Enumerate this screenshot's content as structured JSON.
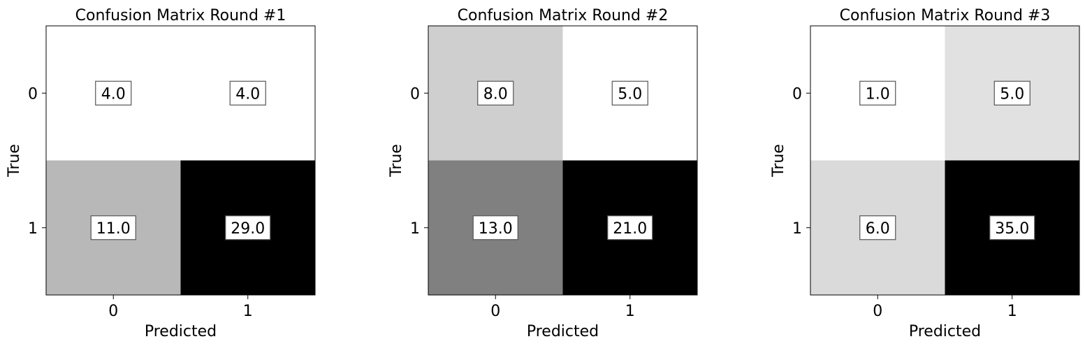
{
  "chart_data": [
    {
      "type": "heatmap",
      "title": "Confusion Matrix Round #1",
      "xlabel": "Predicted",
      "ylabel": "True",
      "x_ticks": [
        "0",
        "1"
      ],
      "y_ticks": [
        "0",
        "1"
      ],
      "values": [
        [
          4,
          4
        ],
        [
          11,
          29
        ]
      ],
      "value_labels": [
        [
          "4.0",
          "4.0"
        ],
        [
          "11.0",
          "29.0"
        ]
      ],
      "colormap": "greys"
    },
    {
      "type": "heatmap",
      "title": "Confusion Matrix Round #2",
      "xlabel": "Predicted",
      "ylabel": "True",
      "x_ticks": [
        "0",
        "1"
      ],
      "y_ticks": [
        "0",
        "1"
      ],
      "values": [
        [
          8,
          5
        ],
        [
          13,
          21
        ]
      ],
      "value_labels": [
        [
          "8.0",
          "5.0"
        ],
        [
          "13.0",
          "21.0"
        ]
      ],
      "colormap": "greys"
    },
    {
      "type": "heatmap",
      "title": "Confusion Matrix Round #3",
      "xlabel": "Predicted",
      "ylabel": "True",
      "x_ticks": [
        "0",
        "1"
      ],
      "y_ticks": [
        "0",
        "1"
      ],
      "values": [
        [
          1,
          5
        ],
        [
          6,
          35
        ]
      ],
      "value_labels": [
        [
          "1.0",
          "5.0"
        ],
        [
          "6.0",
          "35.0"
        ]
      ],
      "colormap": "greys"
    }
  ]
}
